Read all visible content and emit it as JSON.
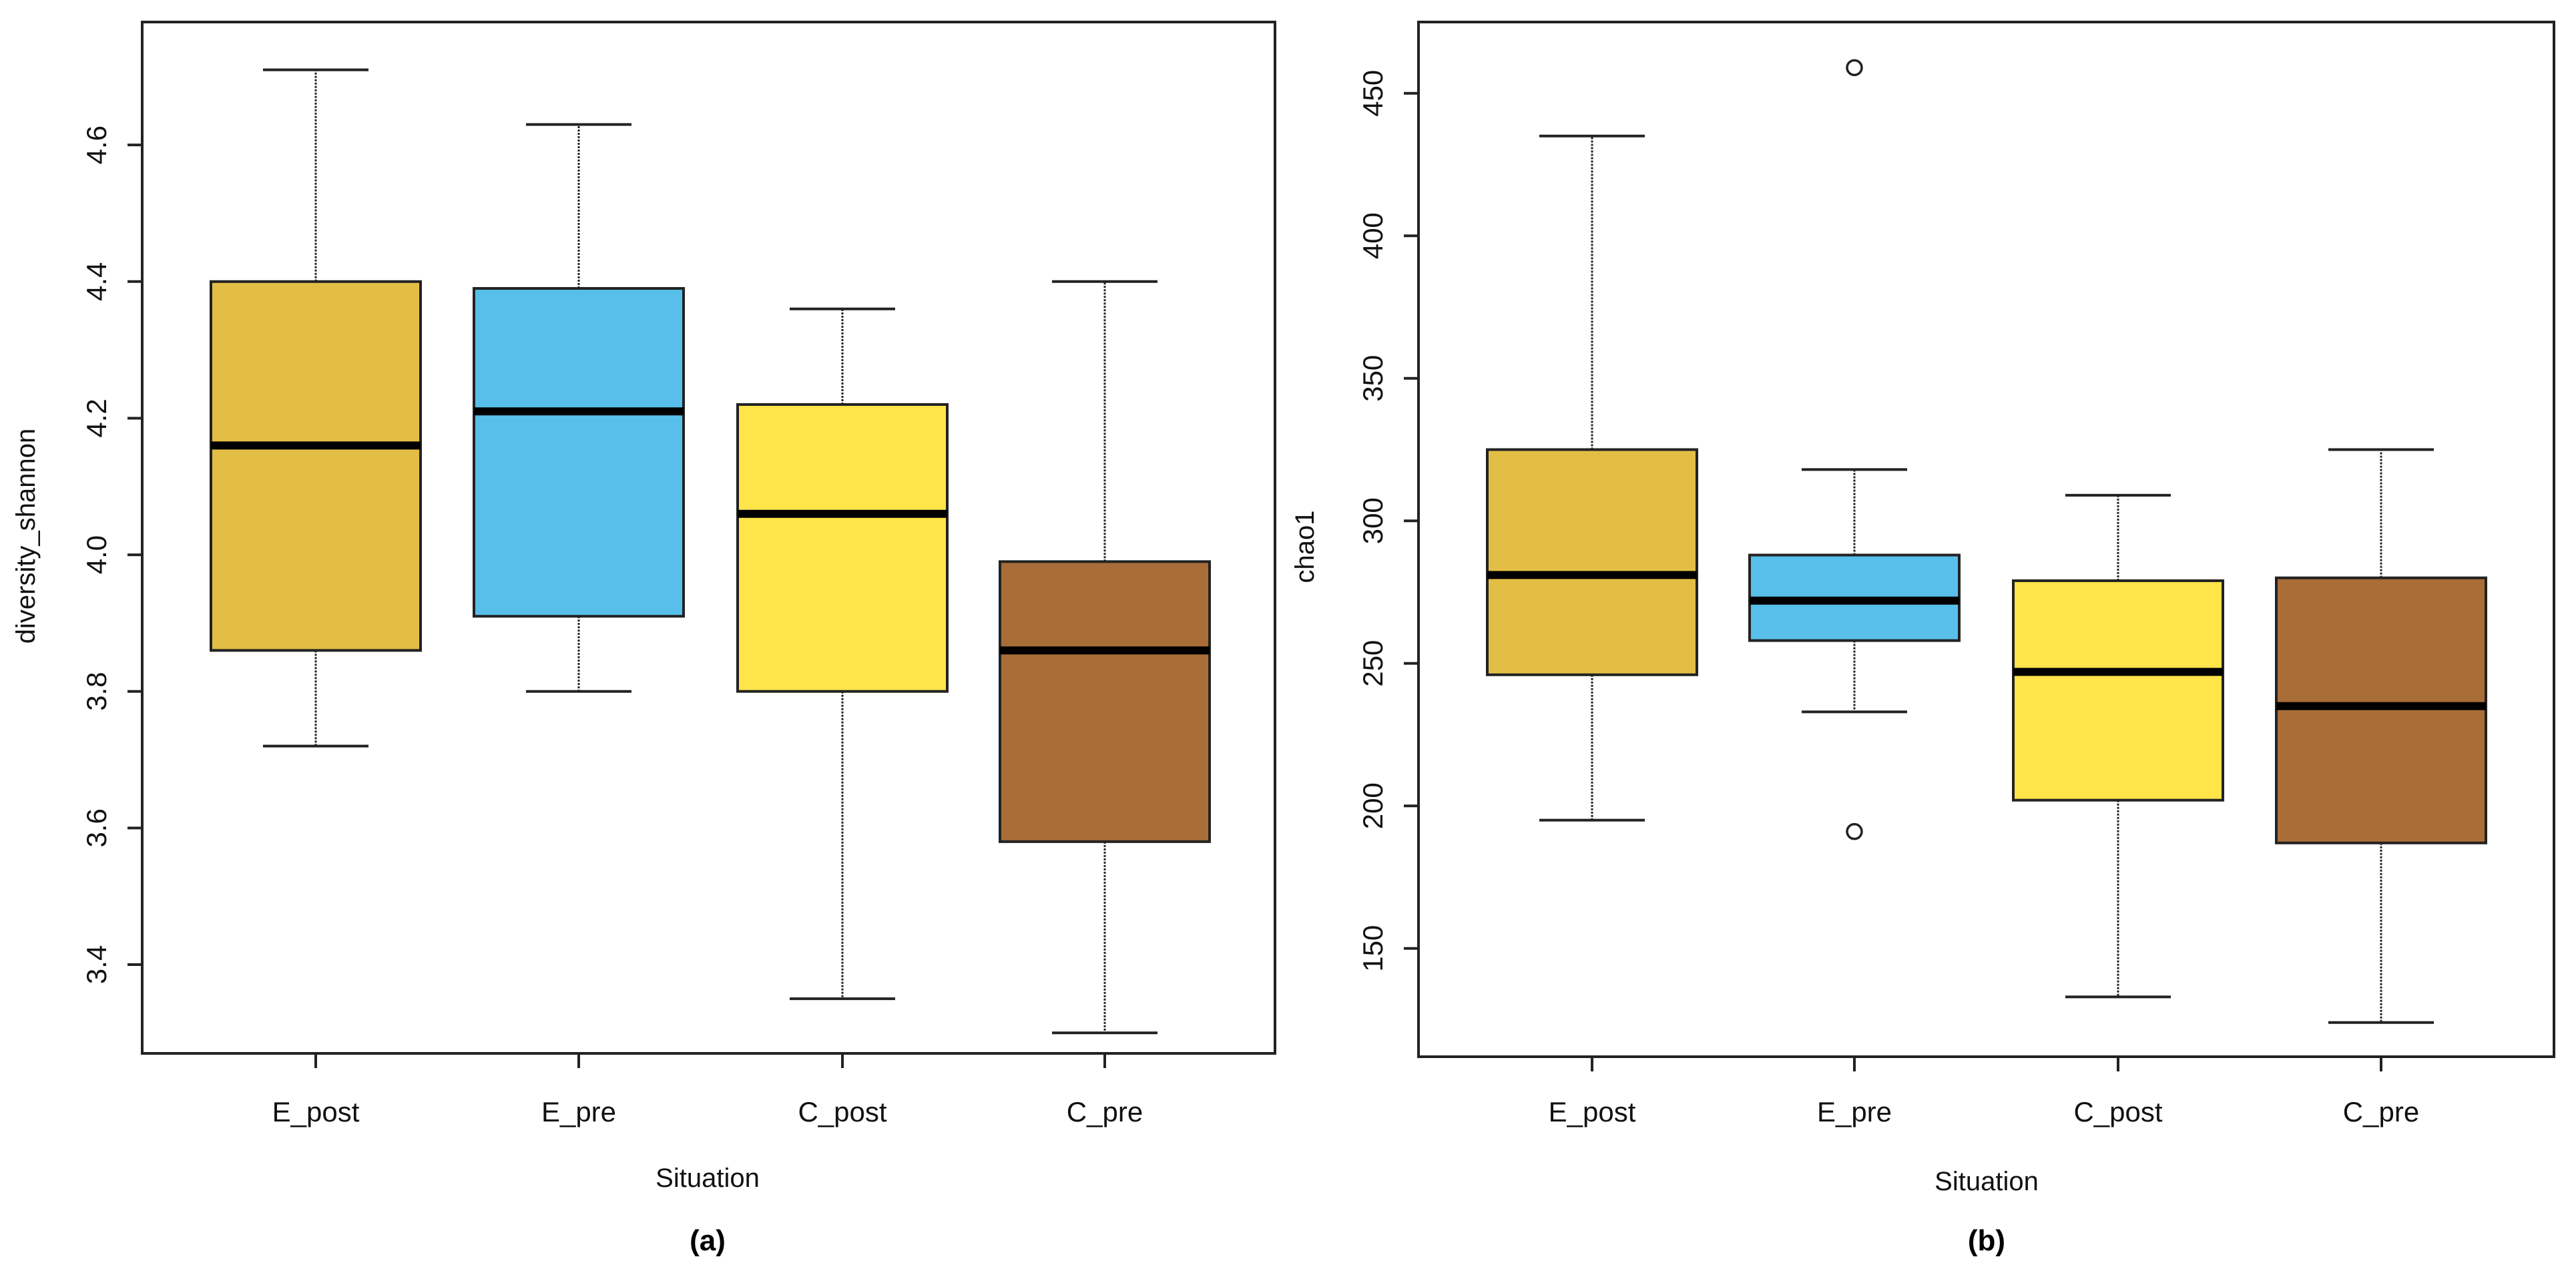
{
  "chart_data": [
    {
      "type": "boxplot",
      "panel_label": "(a)",
      "title": "",
      "xlabel": "Situation",
      "ylabel": "diversity_shannon",
      "categories": [
        "E_post",
        "E_pre",
        "C_post",
        "C_pre"
      ],
      "ylim": [
        3.27,
        4.78
      ],
      "yticks": [
        3.4,
        3.6,
        3.8,
        4.0,
        4.2,
        4.4,
        4.6
      ],
      "ytick_labels": [
        "3.4",
        "3.6",
        "3.8",
        "4.0",
        "4.2",
        "4.4",
        "4.6"
      ],
      "grid": false,
      "boxes": [
        {
          "category": "E_post",
          "whisker_low": 3.72,
          "q1": 3.86,
          "median": 4.16,
          "q3": 4.4,
          "whisker_high": 4.71,
          "outliers": [],
          "color": "#E2BE45"
        },
        {
          "category": "E_pre",
          "whisker_low": 3.8,
          "q1": 3.91,
          "median": 4.21,
          "q3": 4.39,
          "whisker_high": 4.63,
          "outliers": [],
          "color": "#58BFEA"
        },
        {
          "category": "C_post",
          "whisker_low": 3.35,
          "q1": 3.8,
          "median": 4.06,
          "q3": 4.22,
          "whisker_high": 4.36,
          "outliers": [],
          "color": "#FFE44A"
        },
        {
          "category": "C_pre",
          "whisker_low": 3.3,
          "q1": 3.58,
          "median": 3.86,
          "q3": 3.99,
          "whisker_high": 4.4,
          "outliers": [],
          "color": "#A96D38"
        }
      ]
    },
    {
      "type": "boxplot",
      "panel_label": "(b)",
      "title": "",
      "xlabel": "Situation",
      "ylabel": "chao1",
      "categories": [
        "E_post",
        "E_pre",
        "C_post",
        "C_pre"
      ],
      "ylim": [
        112,
        475
      ],
      "yticks": [
        150,
        200,
        250,
        300,
        350,
        400,
        450
      ],
      "ytick_labels": [
        "150",
        "200",
        "250",
        "300",
        "350",
        "400",
        "450"
      ],
      "grid": false,
      "boxes": [
        {
          "category": "E_post",
          "whisker_low": 195,
          "q1": 246,
          "median": 281,
          "q3": 325,
          "whisker_high": 435,
          "outliers": [],
          "color": "#E2BE45"
        },
        {
          "category": "E_pre",
          "whisker_low": 233,
          "q1": 258,
          "median": 272,
          "q3": 288,
          "whisker_high": 318,
          "outliers": [
            459,
            191
          ],
          "color": "#58BFEA"
        },
        {
          "category": "C_post",
          "whisker_low": 133,
          "q1": 202,
          "median": 247,
          "q3": 279,
          "whisker_high": 309,
          "outliers": [],
          "color": "#FFE44A"
        },
        {
          "category": "C_pre",
          "whisker_low": 124,
          "q1": 187,
          "median": 235,
          "q3": 280,
          "whisker_high": 325,
          "outliers": [],
          "color": "#A96D38"
        }
      ]
    }
  ]
}
